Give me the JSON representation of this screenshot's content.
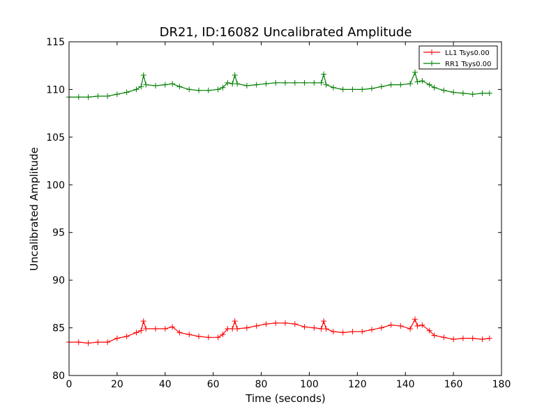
{
  "chart_data": {
    "type": "line",
    "title": "DR21, ID:16082 Uncalibrated Amplitude",
    "xlabel": "Time (seconds)",
    "ylabel": "Uncalibrated Amplitude",
    "xlim": [
      0,
      180
    ],
    "ylim": [
      80,
      115
    ],
    "xticks": [
      0,
      20,
      40,
      60,
      80,
      100,
      120,
      140,
      160,
      180
    ],
    "yticks": [
      80,
      85,
      90,
      95,
      100,
      105,
      110,
      115
    ],
    "grid": false,
    "legend_position": "top-right",
    "marker": "+",
    "series": [
      {
        "name": "LL1 Tsys0.00",
        "color": "#ff0000",
        "points": [
          [
            0,
            83.5
          ],
          [
            4,
            83.5
          ],
          [
            8,
            83.4
          ],
          [
            12,
            83.5
          ],
          [
            16,
            83.5
          ],
          [
            20,
            83.9
          ],
          [
            24,
            84.1
          ],
          [
            28,
            84.5
          ],
          [
            30,
            84.7
          ],
          [
            31,
            85.7
          ],
          [
            32,
            84.9
          ],
          [
            36,
            84.9
          ],
          [
            40,
            84.9
          ],
          [
            43,
            85.1
          ],
          [
            46,
            84.5
          ],
          [
            50,
            84.3
          ],
          [
            54,
            84.1
          ],
          [
            58,
            84.0
          ],
          [
            62,
            84.0
          ],
          [
            64,
            84.3
          ],
          [
            66,
            84.9
          ],
          [
            68,
            84.9
          ],
          [
            69,
            85.7
          ],
          [
            70,
            84.9
          ],
          [
            74,
            85.0
          ],
          [
            78,
            85.2
          ],
          [
            82,
            85.4
          ],
          [
            86,
            85.5
          ],
          [
            90,
            85.5
          ],
          [
            94,
            85.4
          ],
          [
            98,
            85.1
          ],
          [
            102,
            85.0
          ],
          [
            105,
            84.9
          ],
          [
            106,
            85.7
          ],
          [
            107,
            84.9
          ],
          [
            110,
            84.6
          ],
          [
            114,
            84.5
          ],
          [
            118,
            84.6
          ],
          [
            122,
            84.6
          ],
          [
            126,
            84.8
          ],
          [
            130,
            85.0
          ],
          [
            134,
            85.3
          ],
          [
            138,
            85.2
          ],
          [
            142,
            84.9
          ],
          [
            144,
            85.9
          ],
          [
            145,
            85.2
          ],
          [
            147,
            85.3
          ],
          [
            150,
            84.7
          ],
          [
            152,
            84.2
          ],
          [
            156,
            84.0
          ],
          [
            160,
            83.8
          ],
          [
            164,
            83.9
          ],
          [
            168,
            83.9
          ],
          [
            172,
            83.8
          ],
          [
            175,
            83.9
          ]
        ]
      },
      {
        "name": "RR1 Tsys0.00",
        "color": "#007f00",
        "points": [
          [
            0,
            109.2
          ],
          [
            4,
            109.2
          ],
          [
            8,
            109.2
          ],
          [
            12,
            109.3
          ],
          [
            16,
            109.3
          ],
          [
            20,
            109.5
          ],
          [
            24,
            109.7
          ],
          [
            28,
            110.0
          ],
          [
            30,
            110.3
          ],
          [
            31,
            111.5
          ],
          [
            32,
            110.5
          ],
          [
            36,
            110.4
          ],
          [
            40,
            110.5
          ],
          [
            43,
            110.6
          ],
          [
            46,
            110.3
          ],
          [
            50,
            110.0
          ],
          [
            54,
            109.9
          ],
          [
            58,
            109.9
          ],
          [
            62,
            110.0
          ],
          [
            64,
            110.2
          ],
          [
            66,
            110.7
          ],
          [
            68,
            110.6
          ],
          [
            69,
            111.5
          ],
          [
            70,
            110.6
          ],
          [
            74,
            110.4
          ],
          [
            78,
            110.5
          ],
          [
            82,
            110.6
          ],
          [
            86,
            110.7
          ],
          [
            90,
            110.7
          ],
          [
            94,
            110.7
          ],
          [
            98,
            110.7
          ],
          [
            102,
            110.7
          ],
          [
            105,
            110.7
          ],
          [
            106,
            111.6
          ],
          [
            107,
            110.5
          ],
          [
            110,
            110.2
          ],
          [
            114,
            110.0
          ],
          [
            118,
            110.0
          ],
          [
            122,
            110.0
          ],
          [
            126,
            110.1
          ],
          [
            130,
            110.3
          ],
          [
            134,
            110.5
          ],
          [
            138,
            110.5
          ],
          [
            142,
            110.6
          ],
          [
            144,
            111.8
          ],
          [
            145,
            110.8
          ],
          [
            147,
            110.9
          ],
          [
            150,
            110.5
          ],
          [
            152,
            110.2
          ],
          [
            156,
            109.9
          ],
          [
            160,
            109.7
          ],
          [
            164,
            109.6
          ],
          [
            168,
            109.5
          ],
          [
            172,
            109.6
          ],
          [
            175,
            109.6
          ]
        ]
      }
    ]
  }
}
